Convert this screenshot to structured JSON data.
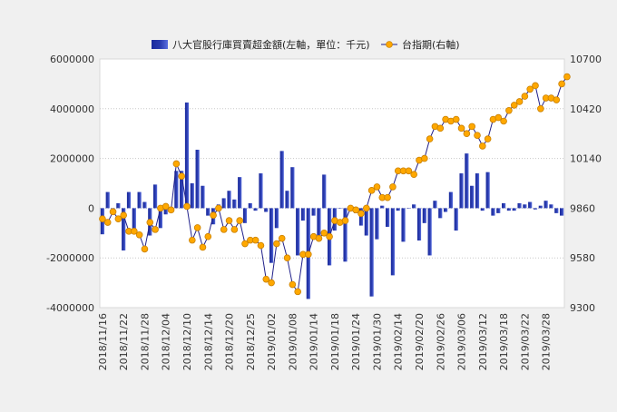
{
  "chart_data": {
    "type": "bar+line",
    "legend": [
      {
        "label": "八大官股行庫買賣超金額(左軸，單位：千元)",
        "marker": "bar",
        "color": "#2b3db0"
      },
      {
        "label": "台指期(右軸)",
        "marker": "line-dot",
        "color": "#ffa800"
      }
    ],
    "legend_position": "top-center",
    "grid": "horizontal-dotted",
    "y_left": {
      "min": -4000000,
      "max": 6000000,
      "ticks": [
        -4000000,
        -2000000,
        0,
        2000000,
        4000000,
        6000000
      ]
    },
    "y_right": {
      "min": 9300,
      "max": 10700,
      "ticks": [
        9300,
        9580,
        9860,
        10140,
        10420,
        10700
      ]
    },
    "x_tick_labels": [
      "2018/11/16",
      "2018/11/22",
      "2018/11/28",
      "2018/12/04",
      "2018/12/10",
      "2018/12/14",
      "2018/12/20",
      "2018/12/25",
      "2019/01/02",
      "2019/01/08",
      "2019/01/14",
      "2019/01/18",
      "2019/01/24",
      "2019/01/30",
      "2019/02/14",
      "2019/02/20",
      "2019/02/26",
      "2019/03/06",
      "2019/03/12",
      "2019/03/18",
      "2019/03/22",
      "2019/03/28"
    ],
    "series": [
      {
        "name": "八大官股行庫買賣超金額(左軸，單位：千元)",
        "axis": "left",
        "chart": "bar",
        "color": "#2b3db0",
        "values": [
          -1050000,
          650000,
          -200000,
          200000,
          -1700000,
          650000,
          -950000,
          650000,
          250000,
          -1100000,
          950000,
          -800000,
          -250000,
          0,
          1500000,
          1500000,
          4250000,
          1000000,
          2350000,
          900000,
          -300000,
          -650000,
          150000,
          400000,
          700000,
          350000,
          1250000,
          -600000,
          200000,
          -100000,
          1400000,
          -150000,
          -2200000,
          -800000,
          2300000,
          700000,
          1650000,
          -1900000,
          -500000,
          -3650000,
          -300000,
          -1100000,
          1350000,
          -2300000,
          -900000,
          0,
          -2150000,
          100000,
          -200000,
          -700000,
          -1100000,
          -3550000,
          -1250000,
          100000,
          -750000,
          -2700000,
          -100000,
          -1350000,
          0,
          150000,
          -1300000,
          -600000,
          -1900000,
          300000,
          -400000,
          -150000,
          650000,
          -900000,
          1400000,
          2200000,
          900000,
          1400000,
          -100000,
          1450000,
          -300000,
          -200000,
          200000,
          -100000,
          -100000,
          200000,
          150000,
          250000,
          -50000,
          100000,
          300000,
          150000,
          -200000,
          -300000
        ]
      },
      {
        "name": "台指期(右軸)",
        "axis": "right",
        "chart": "line",
        "color": "#ffa800",
        "values": [
          9800,
          9780,
          9840,
          9800,
          9820,
          9730,
          9730,
          9710,
          9630,
          9780,
          9740,
          9860,
          9870,
          9850,
          10110,
          10040,
          9870,
          9680,
          9750,
          9640,
          9700,
          9820,
          9860,
          9740,
          9790,
          9740,
          9790,
          9660,
          9680,
          9680,
          9650,
          9460,
          9440,
          9660,
          9690,
          9580,
          9430,
          9390,
          9600,
          9600,
          9700,
          9690,
          9720,
          9700,
          9790,
          9780,
          9790,
          9860,
          9850,
          9830,
          9860,
          9960,
          9980,
          9920,
          9920,
          9980,
          10070,
          10070,
          10070,
          10050,
          10130,
          10140,
          10250,
          10320,
          10310,
          10360,
          10350,
          10360,
          10310,
          10280,
          10320,
          10270,
          10210,
          10250,
          10360,
          10370,
          10350,
          10410,
          10440,
          10460,
          10490,
          10530,
          10550,
          10420,
          10480,
          10480,
          10470,
          10560,
          10600
        ]
      }
    ]
  }
}
